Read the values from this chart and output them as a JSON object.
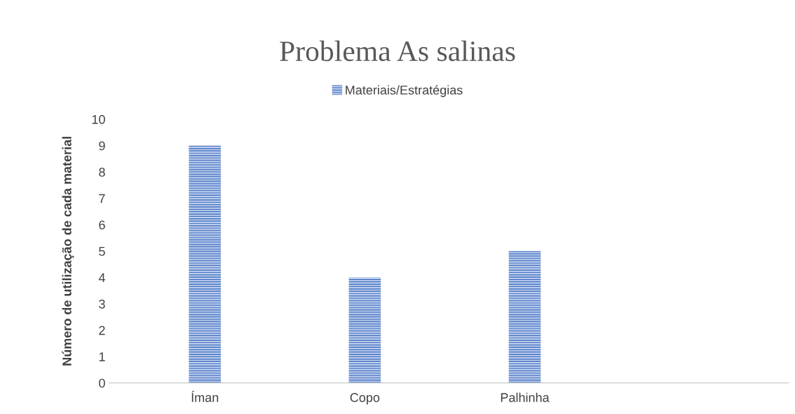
{
  "chart_data": {
    "type": "bar",
    "title": "Problema As salinas",
    "ylabel": "Número de utilização de cada material",
    "categories": [
      "Íman",
      "Copo",
      "Palhinha",
      null
    ],
    "series": [
      {
        "name": "Materiais/Estratégias",
        "color": "#4472c4",
        "values": [
          9,
          4,
          5,
          null
        ]
      }
    ],
    "ylim": [
      0,
      10
    ],
    "yticks": [
      0,
      1,
      2,
      3,
      4,
      5,
      6,
      7,
      8,
      9,
      10
    ],
    "grid": false,
    "legend": "top"
  }
}
